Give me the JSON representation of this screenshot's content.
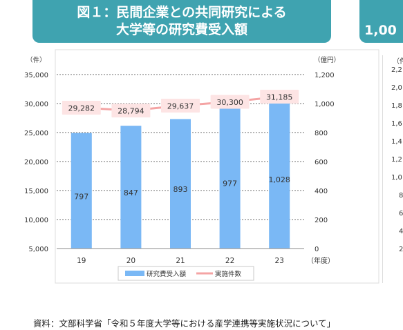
{
  "title": {
    "line1": "図１：民間企業との共同研究による",
    "line2": "大学等の研究費受入額"
  },
  "side_panel": {
    "title_fragment": "1,00",
    "unit_fragment": "（件",
    "tick_fragments": [
      "2,2",
      "2,0",
      "1,8",
      "1,6",
      "1,4",
      "1,2",
      "1,0",
      "8",
      "6",
      "4",
      "2"
    ]
  },
  "chart_data": {
    "type": "bar+line",
    "categories": [
      "19",
      "20",
      "21",
      "22",
      "23"
    ],
    "x_unit": "（年度）",
    "left_axis": {
      "unit": "（件）",
      "min": 5000,
      "max": 35000,
      "ticks": [
        "5,000",
        "10,000",
        "15,000",
        "20,000",
        "25,000",
        "30,000",
        "35,000"
      ]
    },
    "right_axis": {
      "unit": "（億円）",
      "min": 0,
      "max": 1200,
      "ticks": [
        "0",
        "200",
        "400",
        "600",
        "800",
        "1,000",
        "1,200"
      ]
    },
    "series": [
      {
        "name": "研究費受入額",
        "type": "bar",
        "axis": "right",
        "values": [
          797,
          847,
          893,
          977,
          1028
        ],
        "labels": [
          "797",
          "847",
          "893",
          "977",
          "1,028"
        ],
        "color": "#7ab8f5"
      },
      {
        "name": "実施件数",
        "type": "line",
        "axis": "left",
        "values": [
          29282,
          28794,
          29637,
          30300,
          31185
        ],
        "labels": [
          "29,282",
          "28,794",
          "29,637",
          "30,300",
          "31,185"
        ],
        "color": "#f4a4a4"
      }
    ],
    "grid": true,
    "legend": "bottom"
  },
  "footnote": "資料：文部科学省「令和５年度大学等における産学連携等実施状況について」"
}
